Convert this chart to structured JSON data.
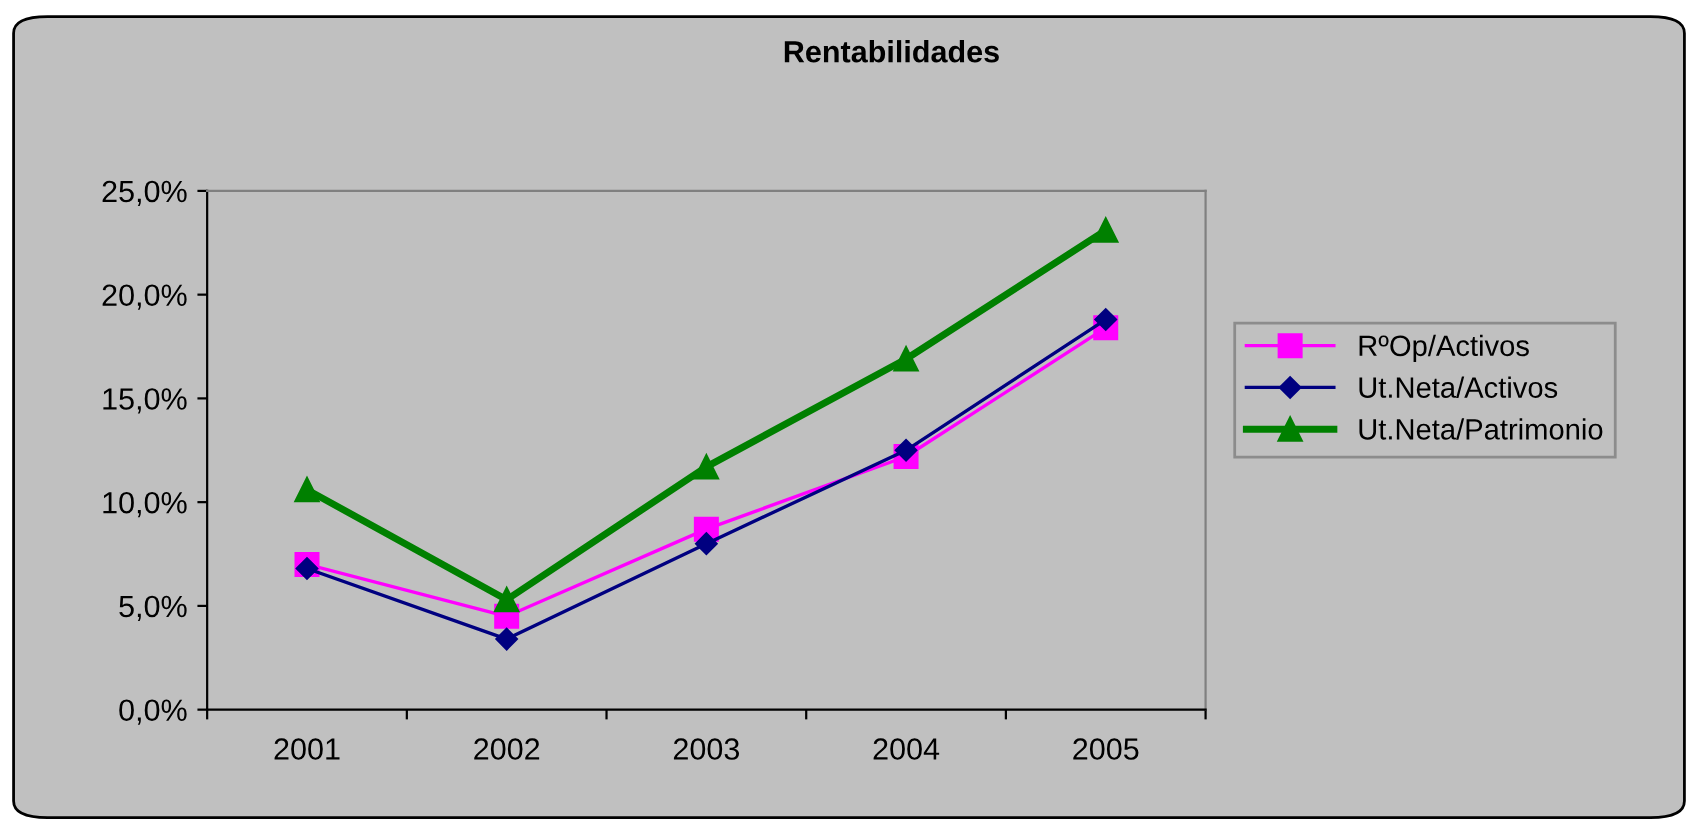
{
  "chart_data": {
    "type": "line",
    "title": "Rentabilidades",
    "categories": [
      "2001",
      "2002",
      "2003",
      "2004",
      "2005"
    ],
    "series": [
      {
        "name": "RºOp/Activos",
        "color": "#ff00ff",
        "marker": "square",
        "values": [
          7.0,
          4.5,
          8.7,
          12.2,
          18.4
        ]
      },
      {
        "name": "Ut.Neta/Activos",
        "color": "#000080",
        "marker": "diamond",
        "values": [
          6.8,
          3.4,
          8.0,
          12.5,
          18.8
        ]
      },
      {
        "name": "Ut.Neta/Patrimonio",
        "color": "#008000",
        "marker": "triangle",
        "values": [
          10.6,
          5.3,
          11.7,
          16.9,
          23.1
        ]
      }
    ],
    "ylim": [
      0,
      25
    ],
    "yticks": [
      {
        "value": 0,
        "label": "0,0%"
      },
      {
        "value": 5,
        "label": "5,0%"
      },
      {
        "value": 10,
        "label": "10,0%"
      },
      {
        "value": 15,
        "label": "15,0%"
      },
      {
        "value": 20,
        "label": "20,0%"
      },
      {
        "value": 25,
        "label": "25,0%"
      }
    ],
    "grid": false,
    "legend": "right",
    "line_style": "solid"
  }
}
